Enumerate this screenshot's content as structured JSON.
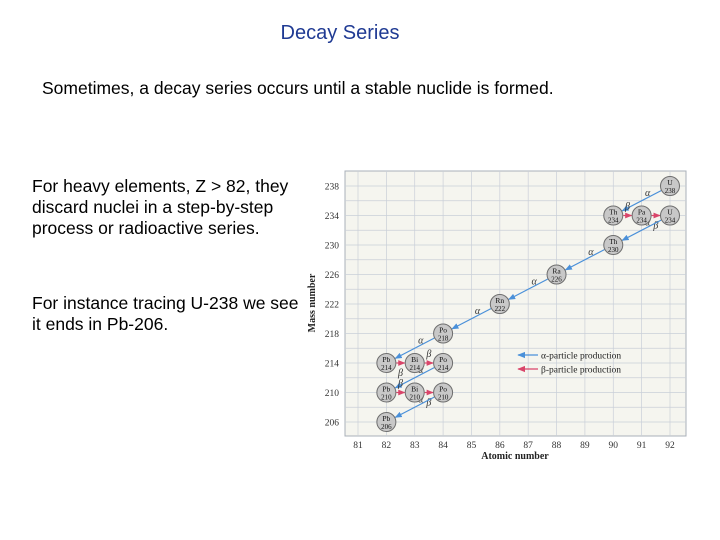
{
  "slide": {
    "title": "Decay Series",
    "intro": "Sometimes, a decay series occurs until a stable nuclide is formed.",
    "paragraph1": "For heavy elements, Z > 82, they discard nuclei in a step-by-step process or radioactive series.",
    "paragraph2": "For instance tracing U-238 we see it ends in Pb-206."
  },
  "chart_data": {
    "type": "scatter",
    "xlabel": "Atomic number",
    "ylabel": "Mass number",
    "x_ticks": [
      81,
      82,
      83,
      84,
      85,
      86,
      87,
      88,
      89,
      90,
      91,
      92
    ],
    "y_ticks": [
      238,
      234,
      230,
      226,
      222,
      218,
      214,
      210,
      206
    ],
    "xlim": [
      81,
      92
    ],
    "ylim": [
      206,
      238
    ],
    "legend": {
      "position": "right",
      "items": [
        {
          "label": "α-particle production",
          "color": "#4a90d9"
        },
        {
          "label": "β-particle production",
          "color": "#d9456a"
        }
      ]
    },
    "nuclides": [
      {
        "symbol": "U",
        "mass": "238",
        "Z": 92,
        "A": 238
      },
      {
        "symbol": "Th",
        "mass": "234",
        "Z": 90,
        "A": 234
      },
      {
        "symbol": "Pa",
        "mass": "234",
        "Z": 91,
        "A": 234
      },
      {
        "symbol": "U",
        "mass": "234",
        "Z": 92,
        "A": 234
      },
      {
        "symbol": "Th",
        "mass": "230",
        "Z": 90,
        "A": 230
      },
      {
        "symbol": "Ra",
        "mass": "226",
        "Z": 88,
        "A": 226
      },
      {
        "symbol": "Rn",
        "mass": "222",
        "Z": 86,
        "A": 222
      },
      {
        "symbol": "Po",
        "mass": "218",
        "Z": 84,
        "A": 218
      },
      {
        "symbol": "Pb",
        "mass": "214",
        "Z": 82,
        "A": 214
      },
      {
        "symbol": "Bi",
        "mass": "214",
        "Z": 83,
        "A": 214
      },
      {
        "symbol": "Po",
        "mass": "214",
        "Z": 84,
        "A": 214
      },
      {
        "symbol": "Pb",
        "mass": "210",
        "Z": 82,
        "A": 210
      },
      {
        "symbol": "Bi",
        "mass": "210",
        "Z": 83,
        "A": 210
      },
      {
        "symbol": "Po",
        "mass": "210",
        "Z": 84,
        "A": 210
      },
      {
        "symbol": "Pb",
        "mass": "206",
        "Z": 82,
        "A": 206
      }
    ],
    "decays": [
      {
        "from": [
          92,
          238
        ],
        "to": [
          90,
          234
        ],
        "kind": "alpha",
        "label": "α"
      },
      {
        "from": [
          90,
          234
        ],
        "to": [
          91,
          234
        ],
        "kind": "beta",
        "label": "β"
      },
      {
        "from": [
          91,
          234
        ],
        "to": [
          92,
          234
        ],
        "kind": "beta",
        "label": "β"
      },
      {
        "from": [
          92,
          234
        ],
        "to": [
          90,
          230
        ],
        "kind": "alpha",
        "label": "α"
      },
      {
        "from": [
          90,
          230
        ],
        "to": [
          88,
          226
        ],
        "kind": "alpha",
        "label": "α"
      },
      {
        "from": [
          88,
          226
        ],
        "to": [
          86,
          222
        ],
        "kind": "alpha",
        "label": "α"
      },
      {
        "from": [
          86,
          222
        ],
        "to": [
          84,
          218
        ],
        "kind": "alpha",
        "label": "α"
      },
      {
        "from": [
          84,
          218
        ],
        "to": [
          82,
          214
        ],
        "kind": "alpha",
        "label": "α"
      },
      {
        "from": [
          82,
          214
        ],
        "to": [
          83,
          214
        ],
        "kind": "beta",
        "label": "β"
      },
      {
        "from": [
          83,
          214
        ],
        "to": [
          84,
          214
        ],
        "kind": "beta",
        "label": "β"
      },
      {
        "from": [
          84,
          214
        ],
        "to": [
          82,
          210
        ],
        "kind": "alpha",
        "label": "α"
      },
      {
        "from": [
          82,
          210
        ],
        "to": [
          83,
          210
        ],
        "kind": "beta",
        "label": "β"
      },
      {
        "from": [
          83,
          210
        ],
        "to": [
          84,
          210
        ],
        "kind": "beta",
        "label": "β"
      },
      {
        "from": [
          84,
          210
        ],
        "to": [
          82,
          206
        ],
        "kind": "alpha",
        "label": "α"
      }
    ],
    "colors": {
      "alpha": "#4a90d9",
      "beta": "#d9456a",
      "plot_bg": "#f5f5ef",
      "grid": "#c9cfd8",
      "node_fill": "#c8c8c8",
      "node_stroke": "#6e6e6e"
    }
  }
}
